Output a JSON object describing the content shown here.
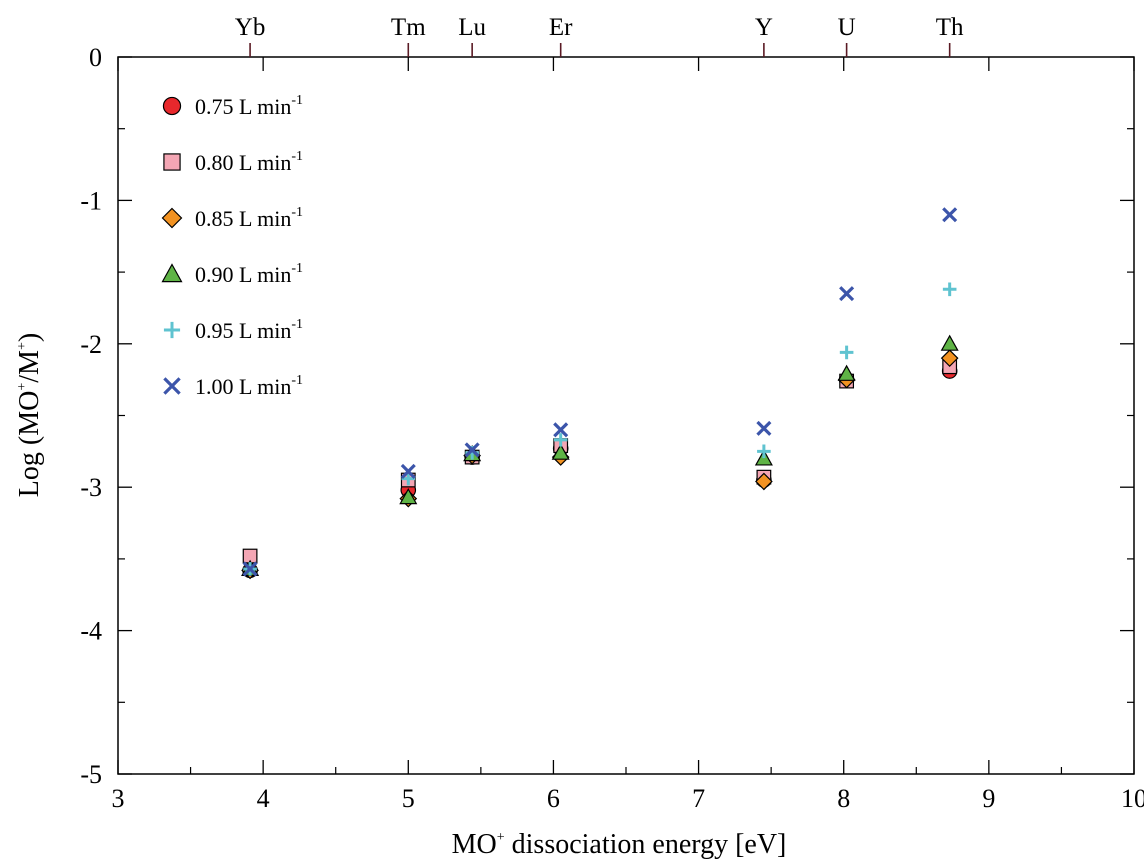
{
  "chart_data": {
    "type": "scatter",
    "xlabel": {
      "prefix": "MO",
      "sup": "+",
      "suffix": " dissociation energy [eV]"
    },
    "ylabel": {
      "prefix": "Log (MO",
      "sup1": "+",
      "mid": "/M",
      "sup2": "+",
      "suffix": ")"
    },
    "xlim": [
      3,
      10
    ],
    "ylim": [
      -5,
      0
    ],
    "xticks": [
      3,
      4,
      5,
      6,
      7,
      8,
      9,
      10
    ],
    "yticks": [
      0,
      -1,
      -2,
      -3,
      -4,
      -5
    ],
    "xtick_labels": [
      "3",
      "4",
      "5",
      "6",
      "7",
      "8",
      "9",
      "10"
    ],
    "ytick_labels": [
      "0",
      "-1",
      "-2",
      "-3",
      "-4",
      "-5"
    ],
    "top_axis": [
      {
        "label": "Yb",
        "x": 3.91
      },
      {
        "label": "Tm",
        "x": 5.0
      },
      {
        "label": "Lu",
        "x": 5.44
      },
      {
        "label": "Er",
        "x": 6.05
      },
      {
        "label": "Y",
        "x": 7.45
      },
      {
        "label": "U",
        "x": 8.02
      },
      {
        "label": "Th",
        "x": 8.73
      }
    ],
    "x": [
      3.91,
      5.0,
      5.44,
      6.05,
      7.45,
      8.02,
      8.73
    ],
    "legend_position": "top-left",
    "series": [
      {
        "name": "0.75 L min",
        "unit_sup": "-1",
        "marker": "circle",
        "color": "#e8282c",
        "values": [
          -3.58,
          -3.02,
          -2.79,
          -2.73,
          -2.95,
          -2.25,
          -2.19
        ]
      },
      {
        "name": "0.80 L min",
        "unit_sup": "-1",
        "marker": "square",
        "color": "#f4a6b4",
        "values": [
          -3.48,
          -2.95,
          -2.79,
          -2.71,
          -2.93,
          -2.26,
          -2.16
        ]
      },
      {
        "name": "0.85 L min",
        "unit_sup": "-1",
        "marker": "diamond",
        "color": "#f29221",
        "values": [
          -3.58,
          -3.08,
          -2.78,
          -2.79,
          -2.96,
          -2.25,
          -2.1
        ]
      },
      {
        "name": "0.90 L min",
        "unit_sup": "-1",
        "marker": "triangle",
        "color": "#5fb446",
        "values": [
          -3.57,
          -3.07,
          -2.77,
          -2.76,
          -2.8,
          -2.21,
          -2.0
        ]
      },
      {
        "name": "0.95 L min",
        "unit_sup": "-1",
        "marker": "plus",
        "color": "#5fc3d0",
        "values": [
          -3.57,
          -2.94,
          -2.76,
          -2.67,
          -2.75,
          -2.06,
          -1.62
        ]
      },
      {
        "name": "1.00  L min",
        "unit_sup": "-1",
        "marker": "cross",
        "color": "#3c55aa",
        "values": [
          -3.57,
          -2.89,
          -2.74,
          -2.6,
          -2.59,
          -1.65,
          -1.1
        ]
      }
    ]
  }
}
